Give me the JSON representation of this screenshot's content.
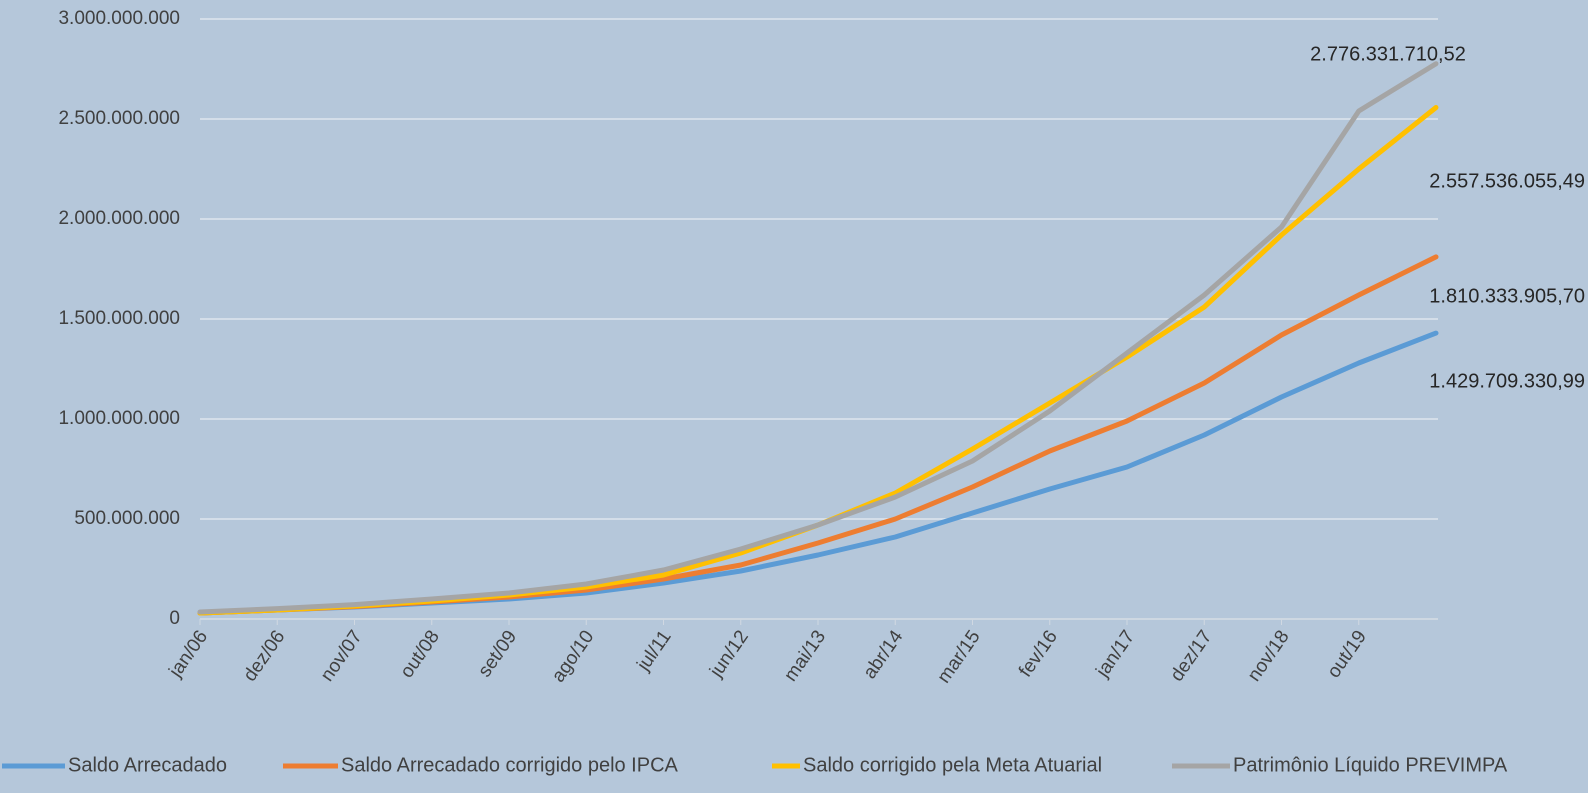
{
  "chart_data": {
    "type": "line",
    "categories": [
      "jan/06",
      "dez/06",
      "nov/07",
      "out/08",
      "set/09",
      "ago/10",
      "jul/11",
      "jun/12",
      "mai/13",
      "abr/14",
      "mar/15",
      "fev/16",
      "jan/17",
      "dez/17",
      "nov/18",
      "out/19",
      null
    ],
    "series": [
      {
        "name": "Saldo Arrecadado",
        "color": "#5b9bd5",
        "values": [
          30000000,
          45000000,
          60000000,
          80000000,
          100000000,
          130000000,
          180000000,
          240000000,
          320000000,
          410000000,
          530000000,
          650000000,
          760000000,
          920000000,
          1110000000,
          1280000000,
          1429709330.99
        ],
        "value_labels": [
          null,
          null,
          null,
          null,
          null,
          null,
          null,
          null,
          null,
          null,
          null,
          null,
          null,
          null,
          null,
          null,
          "1.429.709.330,99"
        ]
      },
      {
        "name": "Saldo Arrecadado corrigido pelo IPCA",
        "color": "#ed7d31",
        "values": [
          30000000,
          45000000,
          62000000,
          85000000,
          110000000,
          145000000,
          200000000,
          270000000,
          380000000,
          500000000,
          660000000,
          840000000,
          990000000,
          1180000000,
          1420000000,
          1620000000,
          1810333905.7
        ],
        "value_labels": [
          null,
          null,
          null,
          null,
          null,
          null,
          null,
          null,
          null,
          null,
          null,
          null,
          null,
          null,
          null,
          null,
          "1.810.333.905,70"
        ]
      },
      {
        "name": "Saldo corrigido pela Meta Atuarial",
        "color": "#ffc000",
        "values": [
          30000000,
          45000000,
          65000000,
          90000000,
          120000000,
          160000000,
          220000000,
          330000000,
          470000000,
          630000000,
          850000000,
          1080000000,
          1310000000,
          1560000000,
          1920000000,
          2250000000,
          2557536055.49
        ],
        "value_labels": [
          null,
          null,
          null,
          null,
          null,
          null,
          null,
          null,
          null,
          null,
          null,
          null,
          null,
          null,
          null,
          null,
          "2.557.536.055,49"
        ]
      },
      {
        "name": "Patrimônio Líquido PREVIMPA",
        "color": "#a5a5a5",
        "values": [
          35000000,
          52000000,
          72000000,
          100000000,
          130000000,
          175000000,
          245000000,
          350000000,
          470000000,
          610000000,
          790000000,
          1040000000,
          1330000000,
          1620000000,
          1960000000,
          2540000000,
          2776331710.52
        ],
        "value_labels": [
          null,
          null,
          null,
          null,
          null,
          null,
          null,
          null,
          null,
          null,
          null,
          null,
          null,
          null,
          null,
          null,
          "2.776.331.710,52"
        ]
      }
    ],
    "ylim": [
      0,
      3000000000
    ],
    "yticks": [
      0,
      {
        "value": 500000000,
        "label": "500.000.000"
      },
      {
        "value": 1000000000,
        "label": "1.000.000.000"
      },
      {
        "value": 1500000000,
        "label": "1.500.000.000"
      },
      {
        "value": 2000000000,
        "label": "2.000.000.000"
      },
      {
        "value": 2500000000,
        "label": "2.500.000.000"
      },
      {
        "value": 3000000000,
        "label": "3.000.000.000"
      }
    ],
    "grid": true,
    "legend": "bottom"
  }
}
